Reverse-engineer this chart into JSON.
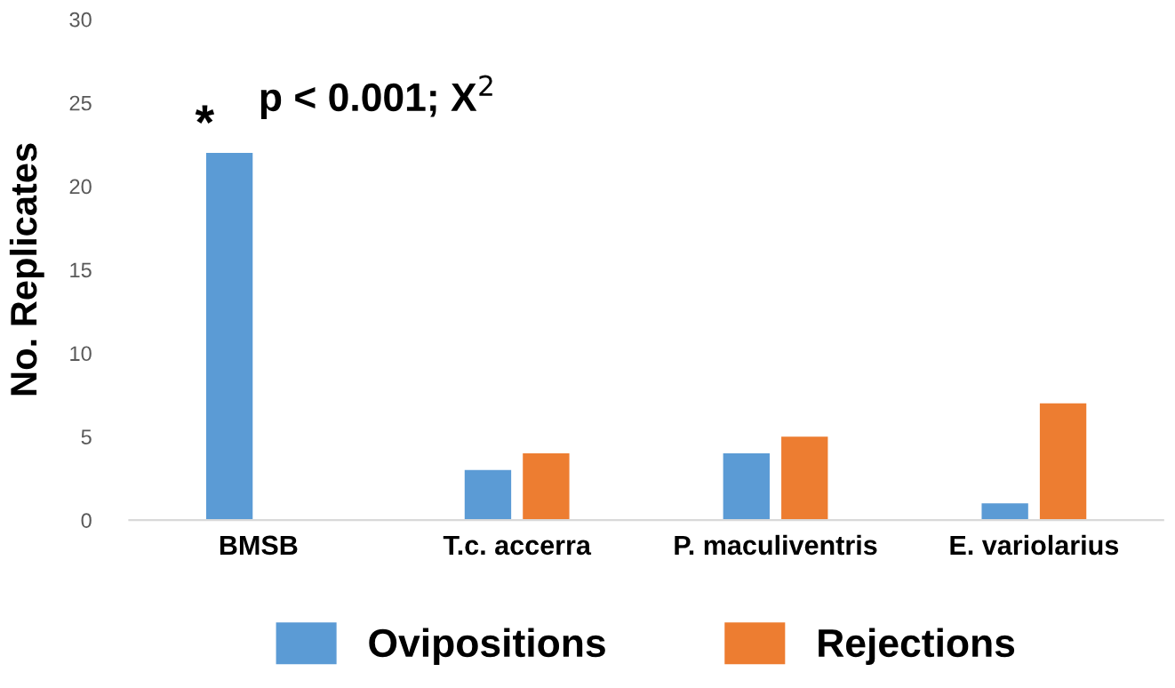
{
  "chart_data": {
    "type": "bar",
    "ylabel": "No. Replicates",
    "categories": [
      "BMSB",
      "T.c. accerra",
      "P. maculiventris",
      "E. variolarius"
    ],
    "series": [
      {
        "name": "Ovipositions",
        "color": "#5b9bd5",
        "values": [
          22,
          3,
          4,
          1
        ]
      },
      {
        "name": "Rejections",
        "color": "#ed7d31",
        "values": [
          0,
          4,
          5,
          7
        ]
      }
    ],
    "ylim": [
      0,
      30
    ],
    "yticks": [
      0,
      5,
      10,
      15,
      20,
      25,
      30
    ],
    "grid": false,
    "legend": "bottom",
    "annotations": [
      "*",
      "p < 0.001; X$^{2}$"
    ]
  }
}
